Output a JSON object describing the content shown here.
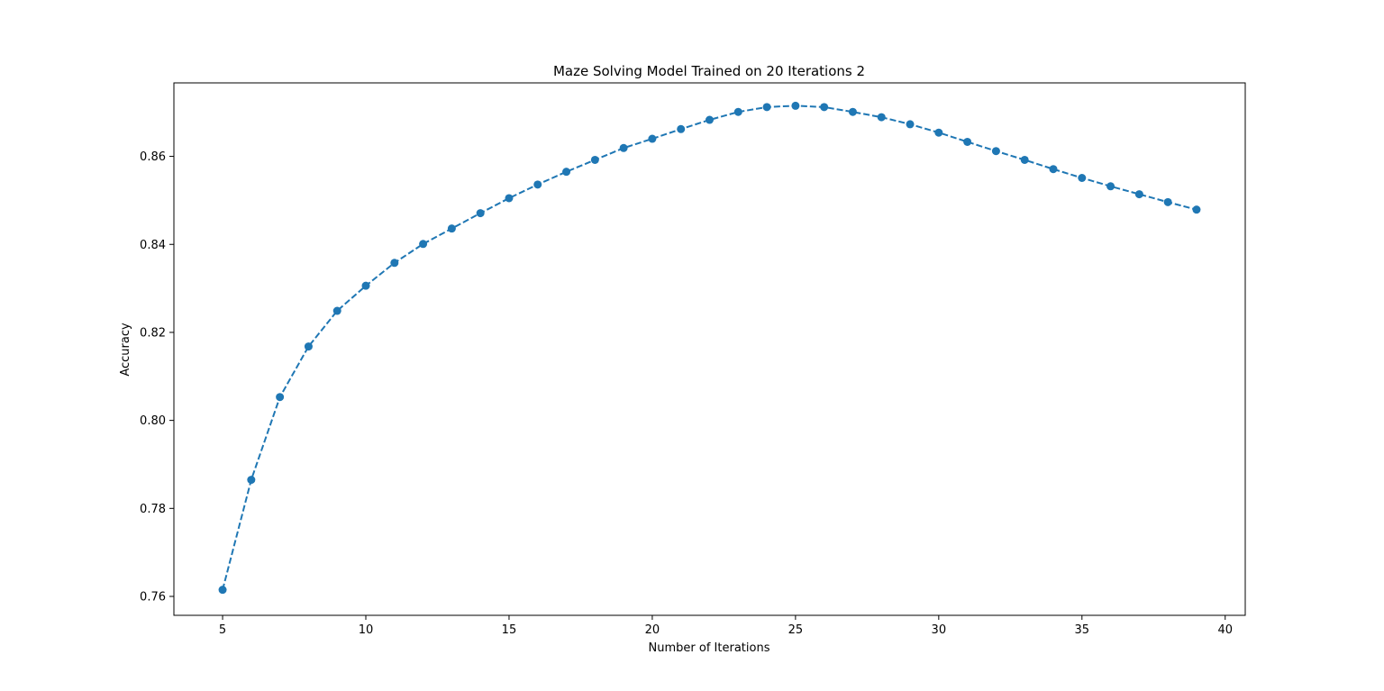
{
  "chart_data": {
    "type": "line",
    "title": "Maze Solving Model Trained on 20 Iterations 2",
    "xlabel": "Number of Iterations",
    "ylabel": "Accuracy",
    "xlim": [
      3.3,
      40.7
    ],
    "ylim": [
      0.7557,
      0.8767
    ],
    "xticks": [
      5,
      10,
      15,
      20,
      25,
      30,
      35,
      40
    ],
    "xtick_labels": [
      "5",
      "10",
      "15",
      "20",
      "25",
      "30",
      "35",
      "40"
    ],
    "yticks": [
      0.76,
      0.78,
      0.8,
      0.82,
      0.84,
      0.86
    ],
    "ytick_labels": [
      "0.76",
      "0.78",
      "0.80",
      "0.82",
      "0.84",
      "0.86"
    ],
    "grid": false,
    "line_style": "dashed",
    "marker": "circle",
    "color": "#1f77b4",
    "series": [
      {
        "x": [
          5,
          6,
          7,
          8,
          9,
          10,
          11,
          12,
          13,
          14,
          15,
          16,
          17,
          18,
          19,
          20,
          21,
          22,
          23,
          24,
          25,
          26,
          27,
          28,
          29,
          30,
          31,
          32,
          33,
          34,
          35,
          36,
          37,
          38,
          39
        ],
        "values": [
          0.7615,
          0.7865,
          0.8053,
          0.8168,
          0.8249,
          0.8306,
          0.8358,
          0.8401,
          0.8436,
          0.8471,
          0.8505,
          0.8536,
          0.8565,
          0.8592,
          0.8619,
          0.864,
          0.8662,
          0.8683,
          0.8701,
          0.8712,
          0.8715,
          0.8712,
          0.8701,
          0.8689,
          0.8673,
          0.8654,
          0.8633,
          0.8612,
          0.8592,
          0.8571,
          0.8551,
          0.8532,
          0.8514,
          0.8496,
          0.8479
        ]
      }
    ]
  }
}
